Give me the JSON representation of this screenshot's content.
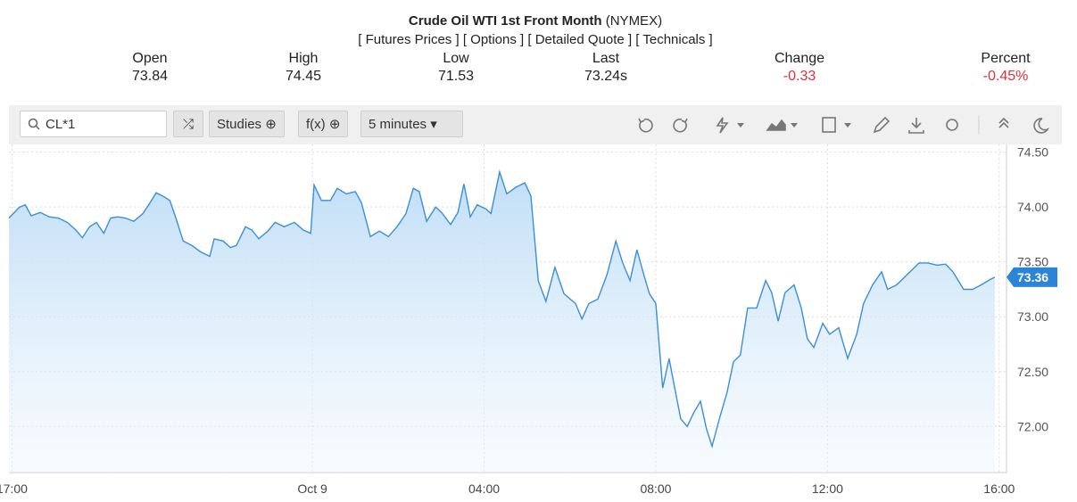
{
  "header": {
    "title": "Crude Oil WTI 1st Front Month",
    "exchange": "(NYMEX)",
    "links": [
      "[ Futures Prices ]",
      "[ Options ]",
      "[ Detailed Quote ]",
      "[ Technicals ]"
    ],
    "stats": [
      {
        "label": "Open",
        "value": "73.84"
      },
      {
        "label": "High",
        "value": "74.45"
      },
      {
        "label": "Low",
        "value": "71.53"
      },
      {
        "label": "Last",
        "value": "73.24s"
      },
      {
        "label": "Change",
        "value": "-0.33"
      },
      {
        "label": "Percent",
        "value": "-0.45%"
      }
    ]
  },
  "toolbar": {
    "symbol": "CL*1",
    "studies": "Studies",
    "function": "f(x)",
    "interval": "5 minutes"
  },
  "chart_data": {
    "type": "line",
    "color": "#3a8fd9",
    "x": [
      -7.07,
      -6.82,
      -6.69,
      -6.55,
      -6.34,
      -6.13,
      -5.92,
      -5.71,
      -5.51,
      -5.36,
      -5.19,
      -5.03,
      -4.86,
      -4.7,
      -4.53,
      -4.36,
      -4.16,
      -3.95,
      -3.78,
      -3.64,
      -3.49,
      -3.32,
      -3.18,
      -3.01,
      -2.81,
      -2.6,
      -2.39,
      -2.29,
      -2.08,
      -1.91,
      -1.77,
      -1.56,
      -1.41,
      -1.25,
      -1.04,
      -0.87,
      -0.66,
      -0.42,
      -0.21,
      -0.04,
      0.04,
      0.21,
      0.42,
      0.58,
      0.79,
      1.0,
      1.14,
      1.35,
      1.56,
      1.77,
      1.97,
      2.18,
      2.35,
      2.49,
      2.66,
      2.87,
      3.01,
      3.22,
      3.39,
      3.53,
      3.68,
      3.84,
      4.05,
      4.16,
      4.36,
      4.53,
      4.74,
      4.95,
      5.09,
      5.26,
      5.44,
      5.65,
      5.86,
      6.13,
      6.28,
      6.44,
      6.65,
      6.86,
      7.07,
      7.23,
      7.4,
      7.56,
      7.73,
      7.85,
      8.0,
      8.16,
      8.31,
      8.42,
      8.58,
      8.73,
      8.89,
      9.04,
      9.18,
      9.31,
      9.48,
      9.66,
      9.81,
      9.97,
      10.14,
      10.35,
      10.56,
      10.7,
      10.85,
      11.01,
      11.22,
      11.39,
      11.53,
      11.68,
      11.89,
      12.05,
      12.26,
      12.47,
      12.68,
      12.84,
      13.05,
      13.26,
      13.4,
      13.61,
      13.82,
      14.03,
      14.13,
      14.34,
      14.55,
      14.75,
      14.92,
      15.17,
      15.38,
      15.58,
      15.79,
      15.9
    ],
    "values": [
      73.9,
      74.0,
      74.02,
      73.92,
      73.95,
      73.91,
      73.9,
      73.86,
      73.79,
      73.72,
      73.82,
      73.86,
      73.76,
      73.9,
      73.91,
      73.9,
      73.87,
      73.94,
      74.04,
      74.13,
      74.1,
      74.06,
      73.9,
      73.69,
      73.65,
      73.59,
      73.55,
      73.71,
      73.69,
      73.63,
      73.65,
      73.82,
      73.79,
      73.71,
      73.78,
      73.86,
      73.82,
      73.86,
      73.79,
      73.76,
      74.2,
      74.06,
      74.06,
      74.17,
      74.12,
      74.14,
      74.04,
      73.73,
      73.78,
      73.73,
      73.82,
      73.94,
      74.17,
      74.14,
      73.87,
      74.0,
      73.95,
      73.84,
      73.95,
      74.21,
      73.91,
      74.02,
      73.98,
      73.94,
      74.32,
      74.12,
      74.18,
      74.22,
      74.1,
      73.33,
      73.14,
      73.45,
      73.21,
      73.12,
      72.98,
      73.12,
      73.16,
      73.38,
      73.69,
      73.49,
      73.33,
      73.61,
      73.37,
      73.21,
      73.12,
      72.35,
      72.62,
      72.39,
      72.07,
      72.0,
      72.13,
      72.23,
      71.98,
      71.82,
      72.07,
      72.31,
      72.59,
      72.65,
      73.08,
      73.08,
      73.33,
      73.22,
      72.96,
      73.22,
      73.29,
      73.08,
      72.8,
      72.72,
      72.94,
      72.84,
      72.9,
      72.62,
      72.84,
      73.12,
      73.29,
      73.41,
      73.25,
      73.29,
      73.37,
      73.45,
      73.49,
      73.49,
      73.47,
      73.48,
      73.41,
      73.25,
      73.25,
      73.29,
      73.34,
      73.36
    ],
    "last_price": 73.36,
    "xlim": [
      -7.07,
      16.17
    ],
    "xticks": [
      {
        "value": -7,
        "label": "17:00"
      },
      {
        "value": 0,
        "label": "Oct 9"
      },
      {
        "value": 4,
        "label": "04:00"
      },
      {
        "value": 8,
        "label": "08:00"
      },
      {
        "value": 12,
        "label": "12:00"
      },
      {
        "value": 16,
        "label": "16:00"
      }
    ],
    "ylim": [
      71.58,
      74.57
    ],
    "yticks": [
      {
        "value": 72,
        "label": "72.00"
      },
      {
        "value": 72.5,
        "label": "72.50"
      },
      {
        "value": 73,
        "label": "73.00"
      },
      {
        "value": 73.5,
        "label": "73.50"
      },
      {
        "value": 74,
        "label": "74.00"
      },
      {
        "value": 74.5,
        "label": "74.50"
      }
    ],
    "grid": true
  }
}
